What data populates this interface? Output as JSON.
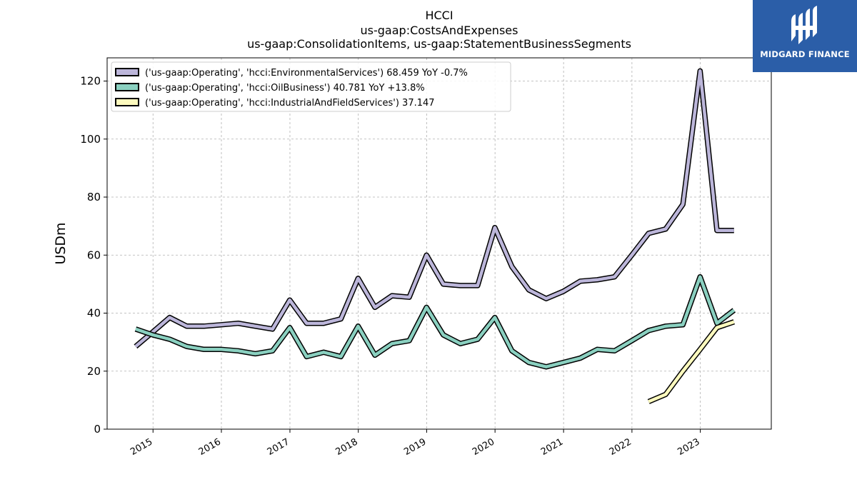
{
  "title_lines": [
    "HCCI",
    "us-gaap:CostsAndExpenses",
    "us-gaap:ConsolidationItems, us-gaap:StatementBusinessSegments"
  ],
  "logo": {
    "text": "MIDGARD FINANCE",
    "color": "#2b5ea8"
  },
  "chart_data": {
    "type": "line",
    "ylabel": "USDm",
    "ylim": [
      0,
      128
    ],
    "yticks": [
      0,
      20,
      40,
      60,
      80,
      100,
      120
    ],
    "xlim": [
      "2014-05-01",
      "2024-01-15"
    ],
    "xticks": [
      "2015",
      "2016",
      "2017",
      "2018",
      "2019",
      "2020",
      "2021",
      "2022",
      "2023"
    ],
    "grid": true,
    "legend_position": "top-left",
    "series": [
      {
        "name": "('us-gaap:Operating', 'hcci:EnvironmentalServices') 68.459 YoY -0.7%",
        "color": "#bcb6da",
        "x": [
          "2014-09-30",
          "2014-12-31",
          "2015-03-31",
          "2015-06-30",
          "2015-09-30",
          "2015-12-31",
          "2016-03-31",
          "2016-06-30",
          "2016-09-30",
          "2016-12-31",
          "2017-03-31",
          "2017-06-30",
          "2017-09-30",
          "2017-12-31",
          "2018-03-31",
          "2018-06-30",
          "2018-09-30",
          "2018-12-31",
          "2019-03-31",
          "2019-06-30",
          "2019-09-30",
          "2019-12-31",
          "2020-03-31",
          "2020-06-30",
          "2020-09-30",
          "2020-12-31",
          "2021-03-31",
          "2021-06-30",
          "2021-09-30",
          "2021-12-31",
          "2022-03-31",
          "2022-06-30",
          "2022-09-30",
          "2022-12-31",
          "2023-03-31",
          "2023-06-30"
        ],
        "values": [
          28.5,
          33.5,
          38.5,
          35.5,
          35.5,
          36.0,
          36.5,
          35.5,
          34.5,
          44.5,
          36.5,
          36.5,
          38.0,
          52.0,
          42.0,
          46.0,
          45.5,
          60.0,
          50.0,
          49.5,
          49.5,
          69.5,
          56.0,
          48.0,
          45.0,
          47.5,
          51.0,
          51.5,
          52.5,
          60.0,
          67.5,
          69.0,
          77.5,
          123.5,
          68.5,
          68.5
        ]
      },
      {
        "name": "('us-gaap:Operating', 'hcci:OilBusiness') 40.781 YoY +13.8%",
        "color": "#8ad0c0",
        "x": [
          "2014-09-30",
          "2014-12-31",
          "2015-03-31",
          "2015-06-30",
          "2015-09-30",
          "2015-12-31",
          "2016-03-31",
          "2016-06-30",
          "2016-09-30",
          "2016-12-31",
          "2017-03-31",
          "2017-06-30",
          "2017-09-30",
          "2017-12-31",
          "2018-03-31",
          "2018-06-30",
          "2018-09-30",
          "2018-12-31",
          "2019-03-31",
          "2019-06-30",
          "2019-09-30",
          "2019-12-31",
          "2020-03-31",
          "2020-06-30",
          "2020-09-30",
          "2020-12-31",
          "2021-03-31",
          "2021-06-30",
          "2021-09-30",
          "2021-12-31",
          "2022-03-31",
          "2022-06-30",
          "2022-09-30",
          "2022-12-31",
          "2023-03-31",
          "2023-06-30"
        ],
        "values": [
          34.5,
          32.5,
          31.0,
          28.5,
          27.5,
          27.5,
          27.0,
          26.0,
          27.0,
          35.0,
          25.0,
          26.5,
          25.0,
          35.5,
          25.5,
          29.5,
          30.5,
          42.0,
          32.5,
          29.5,
          31.0,
          38.5,
          27.0,
          23.0,
          21.5,
          23.0,
          24.5,
          27.5,
          27.0,
          30.5,
          34.0,
          35.5,
          36.0,
          52.5,
          36.5,
          41.0
        ]
      },
      {
        "name": "('us-gaap:Operating', 'hcci:IndustrialAndFieldServices') 37.147",
        "color": "#fdfabe",
        "x": [
          "2022-03-31",
          "2022-06-30",
          "2022-09-30",
          "2022-12-31",
          "2023-03-31",
          "2023-06-30"
        ],
        "values": [
          9.5,
          12.0,
          20.0,
          27.5,
          35.0,
          37.0
        ]
      }
    ]
  }
}
